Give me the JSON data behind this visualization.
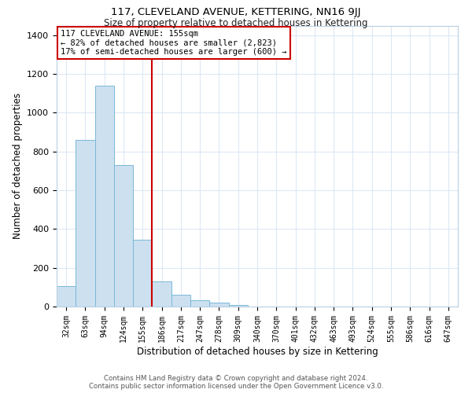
{
  "title": "117, CLEVELAND AVENUE, KETTERING, NN16 9JJ",
  "subtitle": "Size of property relative to detached houses in Kettering",
  "xlabel": "Distribution of detached houses by size in Kettering",
  "ylabel": "Number of detached properties",
  "bar_labels": [
    "32sqm",
    "63sqm",
    "94sqm",
    "124sqm",
    "155sqm",
    "186sqm",
    "217sqm",
    "247sqm",
    "278sqm",
    "309sqm",
    "340sqm",
    "370sqm",
    "401sqm",
    "432sqm",
    "463sqm",
    "493sqm",
    "524sqm",
    "555sqm",
    "586sqm",
    "616sqm",
    "647sqm"
  ],
  "bar_values": [
    105,
    860,
    1140,
    730,
    345,
    130,
    60,
    32,
    20,
    10,
    0,
    0,
    0,
    0,
    0,
    0,
    0,
    0,
    0,
    0,
    0
  ],
  "bar_color": "#cce0f0",
  "bar_edge_color": "#7ab8d8",
  "vline_index": 4,
  "vline_color": "#cc0000",
  "annotation_text_line1": "117 CLEVELAND AVENUE: 155sqm",
  "annotation_text_line2": "← 82% of detached houses are smaller (2,823)",
  "annotation_text_line3": "17% of semi-detached houses are larger (600) →",
  "annotation_box_color": "#cc0000",
  "ylim": [
    0,
    1450
  ],
  "yticks": [
    0,
    200,
    400,
    600,
    800,
    1000,
    1200,
    1400
  ],
  "footer_line1": "Contains HM Land Registry data © Crown copyright and database right 2024.",
  "footer_line2": "Contains public sector information licensed under the Open Government Licence v3.0.",
  "bg_color": "#ffffff",
  "grid_color": "#dce8f5"
}
